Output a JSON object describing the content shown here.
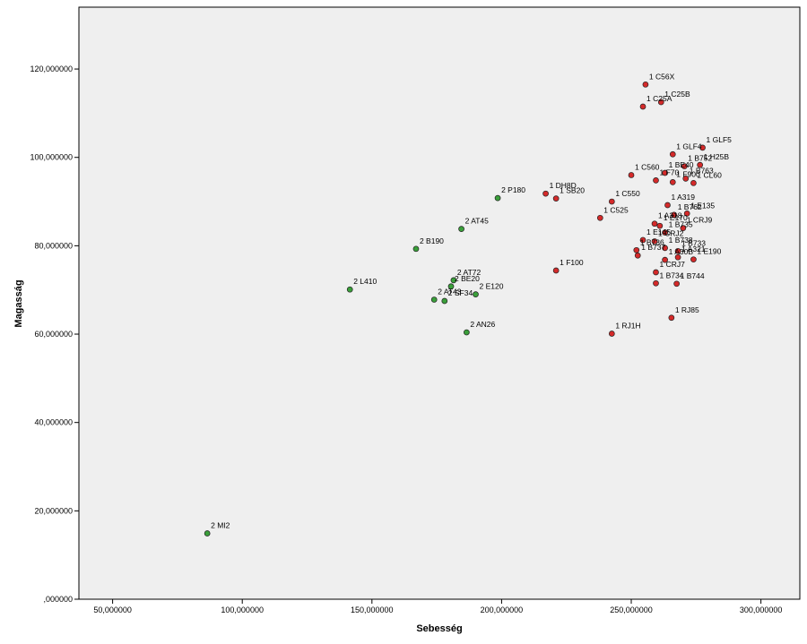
{
  "chart_data": {
    "type": "scatter",
    "xlabel": "Sebesség",
    "ylabel": "Magasság",
    "xlim": [
      37,
      315
    ],
    "ylim": [
      0,
      134
    ],
    "grid": false,
    "x_ticks": [
      50,
      100,
      150,
      200,
      250,
      300
    ],
    "x_tick_labels": [
      "50,000000",
      "100,000000",
      "150,000000",
      "200,000000",
      "250,000000",
      "300,000000"
    ],
    "y_ticks": [
      0,
      20,
      40,
      60,
      80,
      100,
      120
    ],
    "y_tick_labels": [
      ",000000",
      "20,000000",
      "40,000000",
      "60,000000",
      "80,000000",
      "100,000000",
      "120,000000"
    ],
    "colors": {
      "group1": "#d42a2a",
      "group2": "#3a9f3a",
      "plot_bg": "#efefef",
      "marker_edge": "#222222"
    },
    "series": [
      {
        "group": "1",
        "color": "#d42a2a",
        "points": [
          {
            "label": "1 C56X",
            "x": 255.5,
            "y": 116.5
          },
          {
            "label": "1 C25B",
            "x": 261.5,
            "y": 112.5
          },
          {
            "label": "1 C25A",
            "x": 254.5,
            "y": 111.5
          },
          {
            "label": "1 GLF5",
            "x": 277.5,
            "y": 102.2
          },
          {
            "label": "1 GLF4",
            "x": 266.0,
            "y": 100.7
          },
          {
            "label": "1 B752",
            "x": 270.5,
            "y": 98.0
          },
          {
            "label": "1 H25B",
            "x": 276.5,
            "y": 98.3
          },
          {
            "label": "1 C560",
            "x": 250.0,
            "y": 96.0
          },
          {
            "label": "1 BE40",
            "x": 263.0,
            "y": 96.5
          },
          {
            "label": "1 B763",
            "x": 271.0,
            "y": 95.2
          },
          {
            "label": "1 F70",
            "x": 259.5,
            "y": 94.8
          },
          {
            "label": "1 F900",
            "x": 266.0,
            "y": 94.4
          },
          {
            "label": "1 CL60",
            "x": 274.0,
            "y": 94.2
          },
          {
            "label": "1 DH8D",
            "x": 217.0,
            "y": 91.8
          },
          {
            "label": "1 SB20",
            "x": 221.0,
            "y": 90.7
          },
          {
            "label": "1 C550",
            "x": 242.5,
            "y": 90.0
          },
          {
            "label": "1 A319",
            "x": 264.0,
            "y": 89.2
          },
          {
            "label": "1 E135",
            "x": 271.5,
            "y": 87.3
          },
          {
            "label": "1 B762",
            "x": 266.5,
            "y": 87.0
          },
          {
            "label": "1 C525",
            "x": 238.0,
            "y": 86.3
          },
          {
            "label": "1 A318",
            "x": 259.0,
            "y": 85.0
          },
          {
            "label": "1 E170",
            "x": 261.0,
            "y": 84.5
          },
          {
            "label": "1 CRJ9",
            "x": 270.0,
            "y": 84.0
          },
          {
            "label": "1 B735",
            "x": 263.0,
            "y": 83.0
          },
          {
            "label": "1 E145",
            "x": 254.5,
            "y": 81.3
          },
          {
            "label": "1 CRJ2",
            "x": 259.0,
            "y": 81.0
          },
          {
            "label": "1 B738",
            "x": 263.0,
            "y": 79.5
          },
          {
            "label": "1 B736",
            "x": 252.0,
            "y": 79.0
          },
          {
            "label": "1 B733",
            "x": 268.0,
            "y": 78.8
          },
          {
            "label": "1 A321",
            "x": 268.0,
            "y": 77.4
          },
          {
            "label": "1 B737",
            "x": 252.5,
            "y": 77.8
          },
          {
            "label": "1 E190",
            "x": 274.0,
            "y": 76.9
          },
          {
            "label": "1 A30B",
            "x": 263.0,
            "y": 76.8
          },
          {
            "label": "1 F100",
            "x": 221.0,
            "y": 74.4
          },
          {
            "label": "1 CRJ7",
            "x": 259.5,
            "y": 74.0
          },
          {
            "label": "1 B744",
            "x": 267.5,
            "y": 71.4
          },
          {
            "label": "1 B734",
            "x": 259.5,
            "y": 71.5
          },
          {
            "label": "1 RJ85",
            "x": 265.5,
            "y": 63.7
          },
          {
            "label": "1 RJ1H",
            "x": 242.5,
            "y": 60.1
          }
        ]
      },
      {
        "group": "2",
        "color": "#3a9f3a",
        "points": [
          {
            "label": "2 P180",
            "x": 198.5,
            "y": 90.8
          },
          {
            "label": "2 AT45",
            "x": 184.5,
            "y": 83.8
          },
          {
            "label": "2 B190",
            "x": 167.0,
            "y": 79.3
          },
          {
            "label": "2 AT72",
            "x": 181.5,
            "y": 72.2
          },
          {
            "label": "2 BE20",
            "x": 180.5,
            "y": 70.8
          },
          {
            "label": "2 L410",
            "x": 141.5,
            "y": 70.1
          },
          {
            "label": "2 E120",
            "x": 190.0,
            "y": 69.0
          },
          {
            "label": "2 AT43",
            "x": 174.0,
            "y": 67.8
          },
          {
            "label": "2 SF34",
            "x": 178.0,
            "y": 67.5
          },
          {
            "label": "2 AN26",
            "x": 186.5,
            "y": 60.4
          },
          {
            "label": "2 MI2",
            "x": 86.5,
            "y": 14.9
          }
        ]
      }
    ]
  }
}
